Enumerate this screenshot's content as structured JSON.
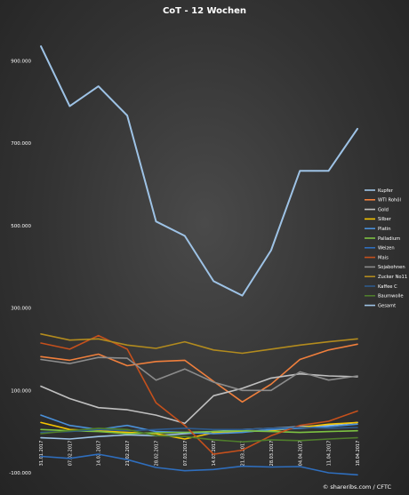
{
  "chart_data": {
    "type": "line",
    "title": "CoT - 12 Wochen",
    "xlabel": "",
    "ylabel": "",
    "ylim": [
      -100000,
      1000000
    ],
    "y_ticks": [
      -100000,
      100000,
      300000,
      500000,
      700000,
      900000
    ],
    "y_tick_labels": [
      "-100.000",
      "100.000",
      "300.000",
      "500.000",
      "700.000",
      "900.000"
    ],
    "grid": false,
    "legend_position": "right",
    "x": [
      "31.01.2017",
      "07.02.2017",
      "14.02.2017",
      "21.02.2017",
      "28.02.2017",
      "07.03.2017",
      "14.03.2017",
      "21.03.2017",
      "28.03.2017",
      "04.04.2017",
      "11.04.2017",
      "18.04.2017"
    ],
    "x_tick_labels": [
      "31.01.2017",
      "07.02.2017",
      "14.02.2017",
      "21.02.2017",
      "28.02.2017",
      "07.03.2017",
      "14.03.2017",
      "21.03.2017",
      "28.03.2017",
      "04.04.2017",
      "11.04.2017",
      "18.04.2017"
    ],
    "series": [
      {
        "name": "Kupfer",
        "color": "#9ec3e6",
        "values": [
          -15000,
          -18000,
          -12000,
          -8000,
          -10000,
          -5000,
          0,
          5000,
          8000,
          12000,
          15000,
          22000
        ]
      },
      {
        "name": "WTI Rohöl",
        "color": "#f07f3c",
        "values": [
          182000,
          173000,
          188000,
          160000,
          170000,
          173000,
          122000,
          72000,
          115000,
          175000,
          198000,
          212000
        ]
      },
      {
        "name": "Gold",
        "color": "#c0c0c0",
        "values": [
          110000,
          80000,
          58000,
          53000,
          40000,
          20000,
          87000,
          105000,
          130000,
          140000,
          135000,
          133000
        ]
      },
      {
        "name": "Silber",
        "color": "#f5c400",
        "values": [
          22000,
          5000,
          2000,
          -2000,
          -5000,
          -18000,
          -3000,
          0,
          2000,
          10000,
          18000,
          22000
        ]
      },
      {
        "name": "Platin",
        "color": "#4a90d9",
        "values": [
          40000,
          15000,
          5000,
          15000,
          0,
          -2000,
          -5000,
          -2000,
          5000,
          8000,
          12000,
          18000
        ]
      },
      {
        "name": "Palladium",
        "color": "#7dc242",
        "values": [
          5000,
          2000,
          0,
          -5000,
          -3000,
          -2000,
          0,
          2000,
          0,
          -2000,
          0,
          2000
        ]
      },
      {
        "name": "Weizen",
        "color": "#2f6ebd",
        "values": [
          -60000,
          -65000,
          -55000,
          -68000,
          -87000,
          -95000,
          -92000,
          -84000,
          -86000,
          -85000,
          -100000,
          -105000
        ]
      },
      {
        "name": "Mais",
        "color": "#c5501c",
        "values": [
          215000,
          200000,
          233000,
          200000,
          70000,
          15000,
          -55000,
          -45000,
          -10000,
          15000,
          25000,
          50000
        ]
      },
      {
        "name": "Sojabohnen",
        "color": "#8c8c8c",
        "values": [
          175000,
          165000,
          180000,
          178000,
          125000,
          152000,
          120000,
          100000,
          100000,
          145000,
          125000,
          135000
        ]
      },
      {
        "name": "Zucker No11",
        "color": "#b28b1e",
        "values": [
          237000,
          222000,
          225000,
          210000,
          202000,
          218000,
          198000,
          190000,
          200000,
          210000,
          218000,
          225000
        ]
      },
      {
        "name": "Kaffee C",
        "color": "#2e5a8c",
        "values": [
          -2000,
          0,
          5000,
          2000,
          5000,
          8000,
          5000,
          5000,
          8000,
          10000,
          8000,
          10000
        ]
      },
      {
        "name": "Baumwolle",
        "color": "#4f7d2c",
        "values": [
          -5000,
          2000,
          8000,
          5000,
          -10000,
          -12000,
          -20000,
          -25000,
          -20000,
          -22000,
          -18000,
          -15000
        ]
      },
      {
        "name": "Gesamt",
        "color": "#9ec3e6",
        "values": [
          935000,
          790000,
          838000,
          767000,
          510000,
          475000,
          365000,
          330000,
          440000,
          633000,
          633000,
          735000
        ]
      }
    ]
  },
  "credit": "© shareribs.com / CFTC"
}
